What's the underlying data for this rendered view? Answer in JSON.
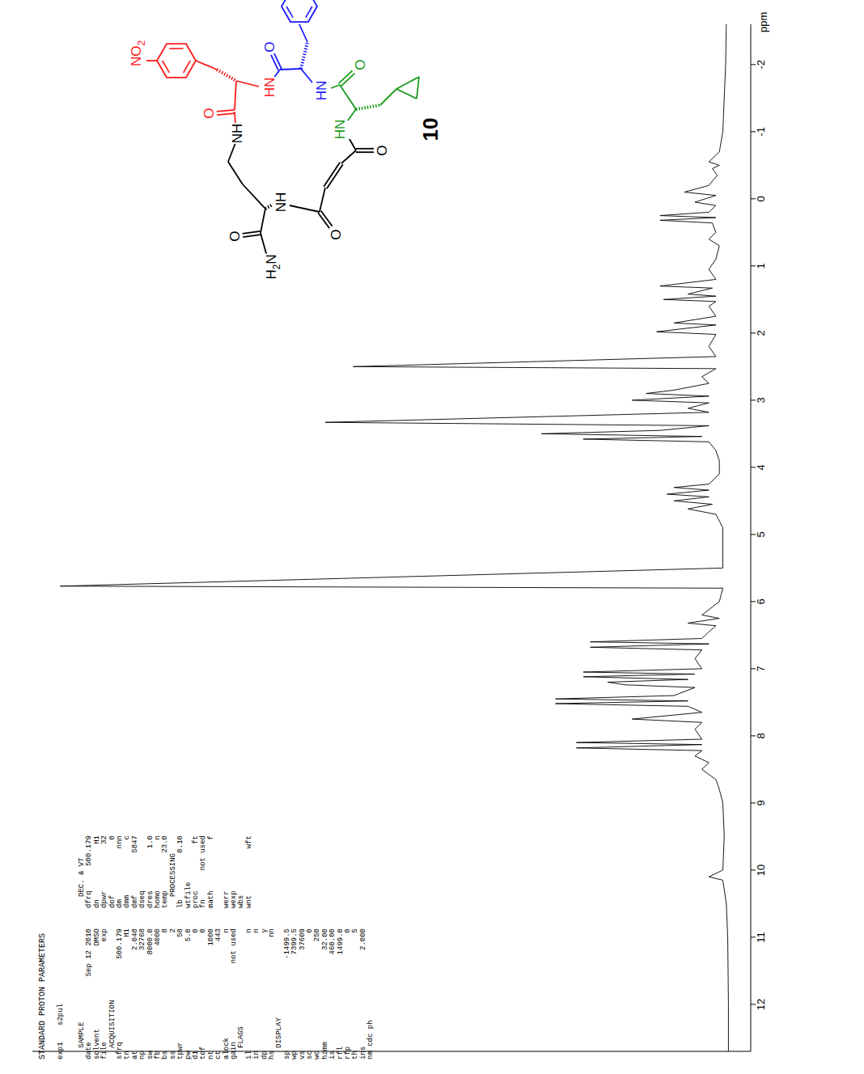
{
  "chart_data": {
    "type": "line",
    "x_label": "ppm",
    "color": "#000000",
    "tick_labels": "x",
    "xlim": [
      -2.6,
      12.7
    ],
    "xticks": [
      -2,
      -1,
      0,
      1,
      2,
      3,
      4,
      5,
      6,
      7,
      8,
      9,
      10,
      11,
      12
    ],
    "ylim": [
      -3,
      100
    ],
    "x": [
      -2.6,
      -2.0,
      -1.5,
      -1.0,
      -0.7,
      -0.55,
      -0.5,
      -0.45,
      -0.35,
      -0.2,
      -0.1,
      -0.05,
      0.05,
      0.1,
      0.2,
      0.25,
      0.28,
      0.32,
      0.36,
      0.5,
      0.6,
      0.7,
      0.9,
      1.05,
      1.2,
      1.3,
      1.33,
      1.42,
      1.45,
      1.5,
      1.53,
      1.6,
      1.75,
      1.85,
      1.88,
      1.98,
      2.02,
      2.2,
      2.35,
      2.5,
      2.53,
      2.65,
      2.75,
      2.85,
      2.9,
      2.94,
      3.0,
      3.04,
      3.12,
      3.18,
      3.33,
      3.38,
      3.45,
      3.5,
      3.54,
      3.58,
      3.62,
      3.75,
      3.9,
      4.1,
      4.25,
      4.3,
      4.34,
      4.4,
      4.44,
      4.5,
      4.55,
      4.62,
      4.7,
      4.9,
      5.2,
      5.5,
      5.77,
      5.8,
      6.0,
      6.2,
      6.25,
      6.32,
      6.36,
      6.45,
      6.55,
      6.6,
      6.63,
      6.68,
      6.72,
      6.85,
      7.0,
      7.05,
      7.08,
      7.12,
      7.16,
      7.2,
      7.24,
      7.28,
      7.4,
      7.45,
      7.48,
      7.52,
      7.56,
      7.65,
      7.75,
      7.8,
      7.9,
      8.05,
      8.1,
      8.13,
      8.18,
      8.22,
      8.3,
      8.4,
      8.5,
      8.65,
      8.8,
      9.0,
      9.5,
      10.0,
      10.1,
      10.15,
      10.5,
      11.0,
      12.0,
      12.7
    ],
    "values": [
      0.5,
      0.6,
      0.8,
      1.0,
      1.5,
      3,
      1.5,
      2.5,
      1.8,
      3,
      6.5,
      2,
      5,
      2,
      3,
      10,
      2,
      10,
      2.5,
      2,
      3,
      1.5,
      2,
      3,
      2,
      10,
      2.5,
      6,
      2,
      9.5,
      2,
      3,
      2,
      8,
      2,
      10.5,
      2,
      3,
      2,
      54,
      2,
      4,
      3,
      8,
      12,
      3,
      14,
      3,
      6,
      3,
      58,
      3,
      10,
      27,
      4,
      21,
      3,
      2,
      1.5,
      1.5,
      3,
      8,
      3,
      9,
      3,
      8,
      2.5,
      6,
      2,
      1,
      1,
      1,
      96,
      1,
      1.5,
      4,
      1.5,
      6,
      2,
      3,
      4,
      20,
      3,
      20,
      4,
      5,
      4,
      21,
      5,
      21,
      6,
      17.5,
      15,
      5,
      8,
      25,
      6,
      25,
      6,
      4,
      14,
      4,
      5,
      4,
      22,
      4,
      22,
      4,
      5,
      3,
      4,
      2,
      1.5,
      1,
      0.8,
      1,
      3,
      1,
      0.5,
      0.3,
      0.2,
      0.2
    ]
  },
  "parameters": {
    "title": "STANDARD PROTON PARAMETERS",
    "experiment": [
      "exp1",
      "s2pul"
    ],
    "lines": [
      {
        "left": [
          "SAMPLE"
        ],
        "right": [
          "DEC. & VT"
        ]
      },
      {
        "left": [
          "date",
          "Sep 12 2010"
        ],
        "right": [
          "dfrq",
          "500.179"
        ]
      },
      {
        "left": [
          "solvent",
          "DMSO"
        ],
        "right": [
          "dn",
          "H1"
        ]
      },
      {
        "left": [
          "file",
          "exp"
        ],
        "right": [
          "dpwr",
          "32"
        ]
      },
      {
        "left": [
          "ACQUISITION"
        ],
        "right": [
          "dof",
          "0"
        ]
      },
      {
        "left": [
          "sfrq",
          "500.179"
        ],
        "right": [
          "dm",
          "nnn"
        ]
      },
      {
        "left": [
          "tn",
          "H1"
        ],
        "right": [
          "dmm",
          "c"
        ]
      },
      {
        "left": [
          "at",
          "2.048"
        ],
        "right": [
          "dmf",
          "5847"
        ]
      },
      {
        "left": [
          "np",
          "32768"
        ],
        "right": [
          "dseq"
        ]
      },
      {
        "left": [
          "sw",
          "8000.0"
        ],
        "right": [
          "dres",
          "1.0"
        ]
      },
      {
        "left": [
          "fb",
          "4000"
        ],
        "right": [
          "homo",
          "n"
        ]
      },
      {
        "left": [
          "bs",
          "8"
        ],
        "right": [
          "temp",
          "23.0"
        ]
      },
      {
        "left": [
          "ss",
          "2"
        ],
        "right": [
          "PROCESSING"
        ]
      },
      {
        "left": [
          "tpwr",
          "58"
        ],
        "right": [
          "lb",
          "0.10"
        ]
      },
      {
        "left": [
          "pw",
          "5.0"
        ],
        "right": [
          "wtfile"
        ]
      },
      {
        "left": [
          "d1",
          "0"
        ],
        "right": [
          "proc",
          "ft"
        ]
      },
      {
        "left": [
          "tof",
          "0"
        ],
        "right": [
          "fn",
          "not used"
        ]
      },
      {
        "left": [
          "nt",
          "1000"
        ],
        "right": [
          "math",
          "f"
        ]
      },
      {
        "left": [
          "ct",
          "443"
        ]
      },
      {
        "left": [
          "alock",
          "n"
        ],
        "right": [
          "werr"
        ]
      },
      {
        "left": [
          "gain",
          "not used"
        ],
        "right": [
          "wexp"
        ]
      },
      {
        "left": [
          "FLAGS"
        ],
        "right": [
          "wbs"
        ]
      },
      {
        "left": [
          "il",
          "n"
        ],
        "right": [
          "wnt",
          "wft"
        ]
      },
      {
        "left": [
          "in",
          "n"
        ]
      },
      {
        "left": [
          "dp",
          "y"
        ]
      },
      {
        "left": [
          "hs",
          "nn"
        ]
      },
      {
        "left": [
          "DISPLAY"
        ]
      },
      {
        "left": [
          "sp",
          "-1499.5"
        ]
      },
      {
        "left": [
          "wp",
          "7399.5"
        ]
      },
      {
        "left": [
          "vs",
          "37609"
        ]
      },
      {
        "left": [
          "sc",
          "0"
        ]
      },
      {
        "left": [
          "wc",
          "250"
        ]
      },
      {
        "left": [
          "hzmm",
          "32.00"
        ]
      },
      {
        "left": [
          "is",
          "460.00"
        ]
      },
      {
        "left": [
          "rfl",
          "1499.0"
        ]
      },
      {
        "left": [
          "rfp",
          "0"
        ]
      },
      {
        "left": [
          "th",
          "5"
        ]
      },
      {
        "left": [
          "ins",
          "2.000"
        ]
      },
      {
        "left": [
          "nm cdc ph"
        ]
      }
    ]
  },
  "structure": {
    "compound": "10",
    "labels": [
      {
        "text": "NO2",
        "color": "#ff1a1a"
      },
      {
        "text": "O",
        "color": "#ff1a1a"
      },
      {
        "text": "HN",
        "color": "#ff1a1a"
      },
      {
        "text": "NH",
        "color": "#000000"
      },
      {
        "text": "NH",
        "color": "#000000"
      },
      {
        "text": "O",
        "color": "#000000"
      },
      {
        "text": "H2N",
        "color": "#000000"
      },
      {
        "text": "O",
        "color": "#000000"
      },
      {
        "text": "O",
        "color": "#000000"
      },
      {
        "text": "O",
        "color": "#1a1aff"
      },
      {
        "text": "HN",
        "color": "#1a1aff"
      },
      {
        "text": "O",
        "color": "#1a9a1a"
      },
      {
        "text": "HN",
        "color": "#1a9a1a"
      }
    ]
  }
}
